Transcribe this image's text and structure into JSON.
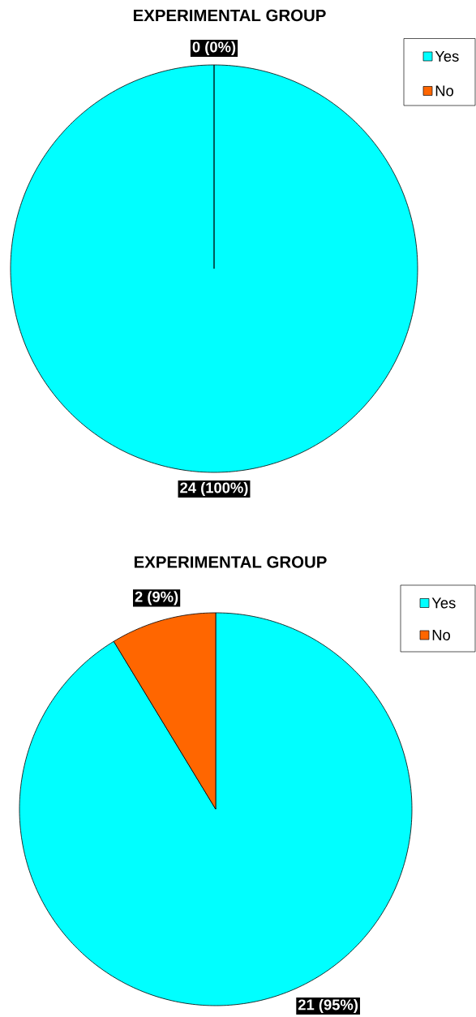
{
  "chart_data": [
    {
      "type": "pie",
      "title": "EXPERIMENTAL GROUP",
      "categories": [
        "Yes",
        "No"
      ],
      "values": [
        24,
        0
      ],
      "colors": [
        "#00ffff",
        "#ff6600"
      ],
      "value_labels": [
        "24 (100%)",
        "0 (0%)"
      ],
      "legend": "top right"
    },
    {
      "type": "pie",
      "title": "EXPERIMENTAL GROUP",
      "categories": [
        "Yes",
        "No"
      ],
      "values": [
        21,
        2
      ],
      "colors": [
        "#00ffff",
        "#ff6600"
      ],
      "value_labels": [
        "21 (95%)",
        "2 (9%)"
      ],
      "legend": "top right"
    }
  ]
}
